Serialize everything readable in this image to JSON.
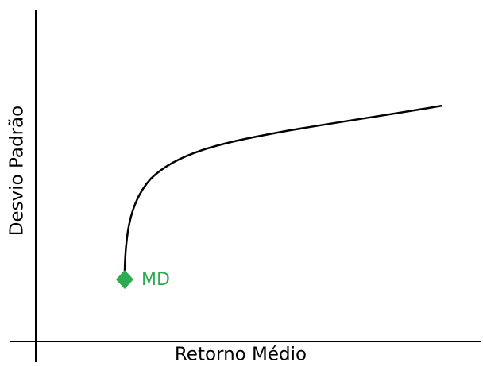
{
  "x_axis": {
    "label": "Retorno Médio"
  },
  "y_axis": {
    "label": "Desvio Padrão"
  },
  "point": {
    "label": "MD"
  }
}
